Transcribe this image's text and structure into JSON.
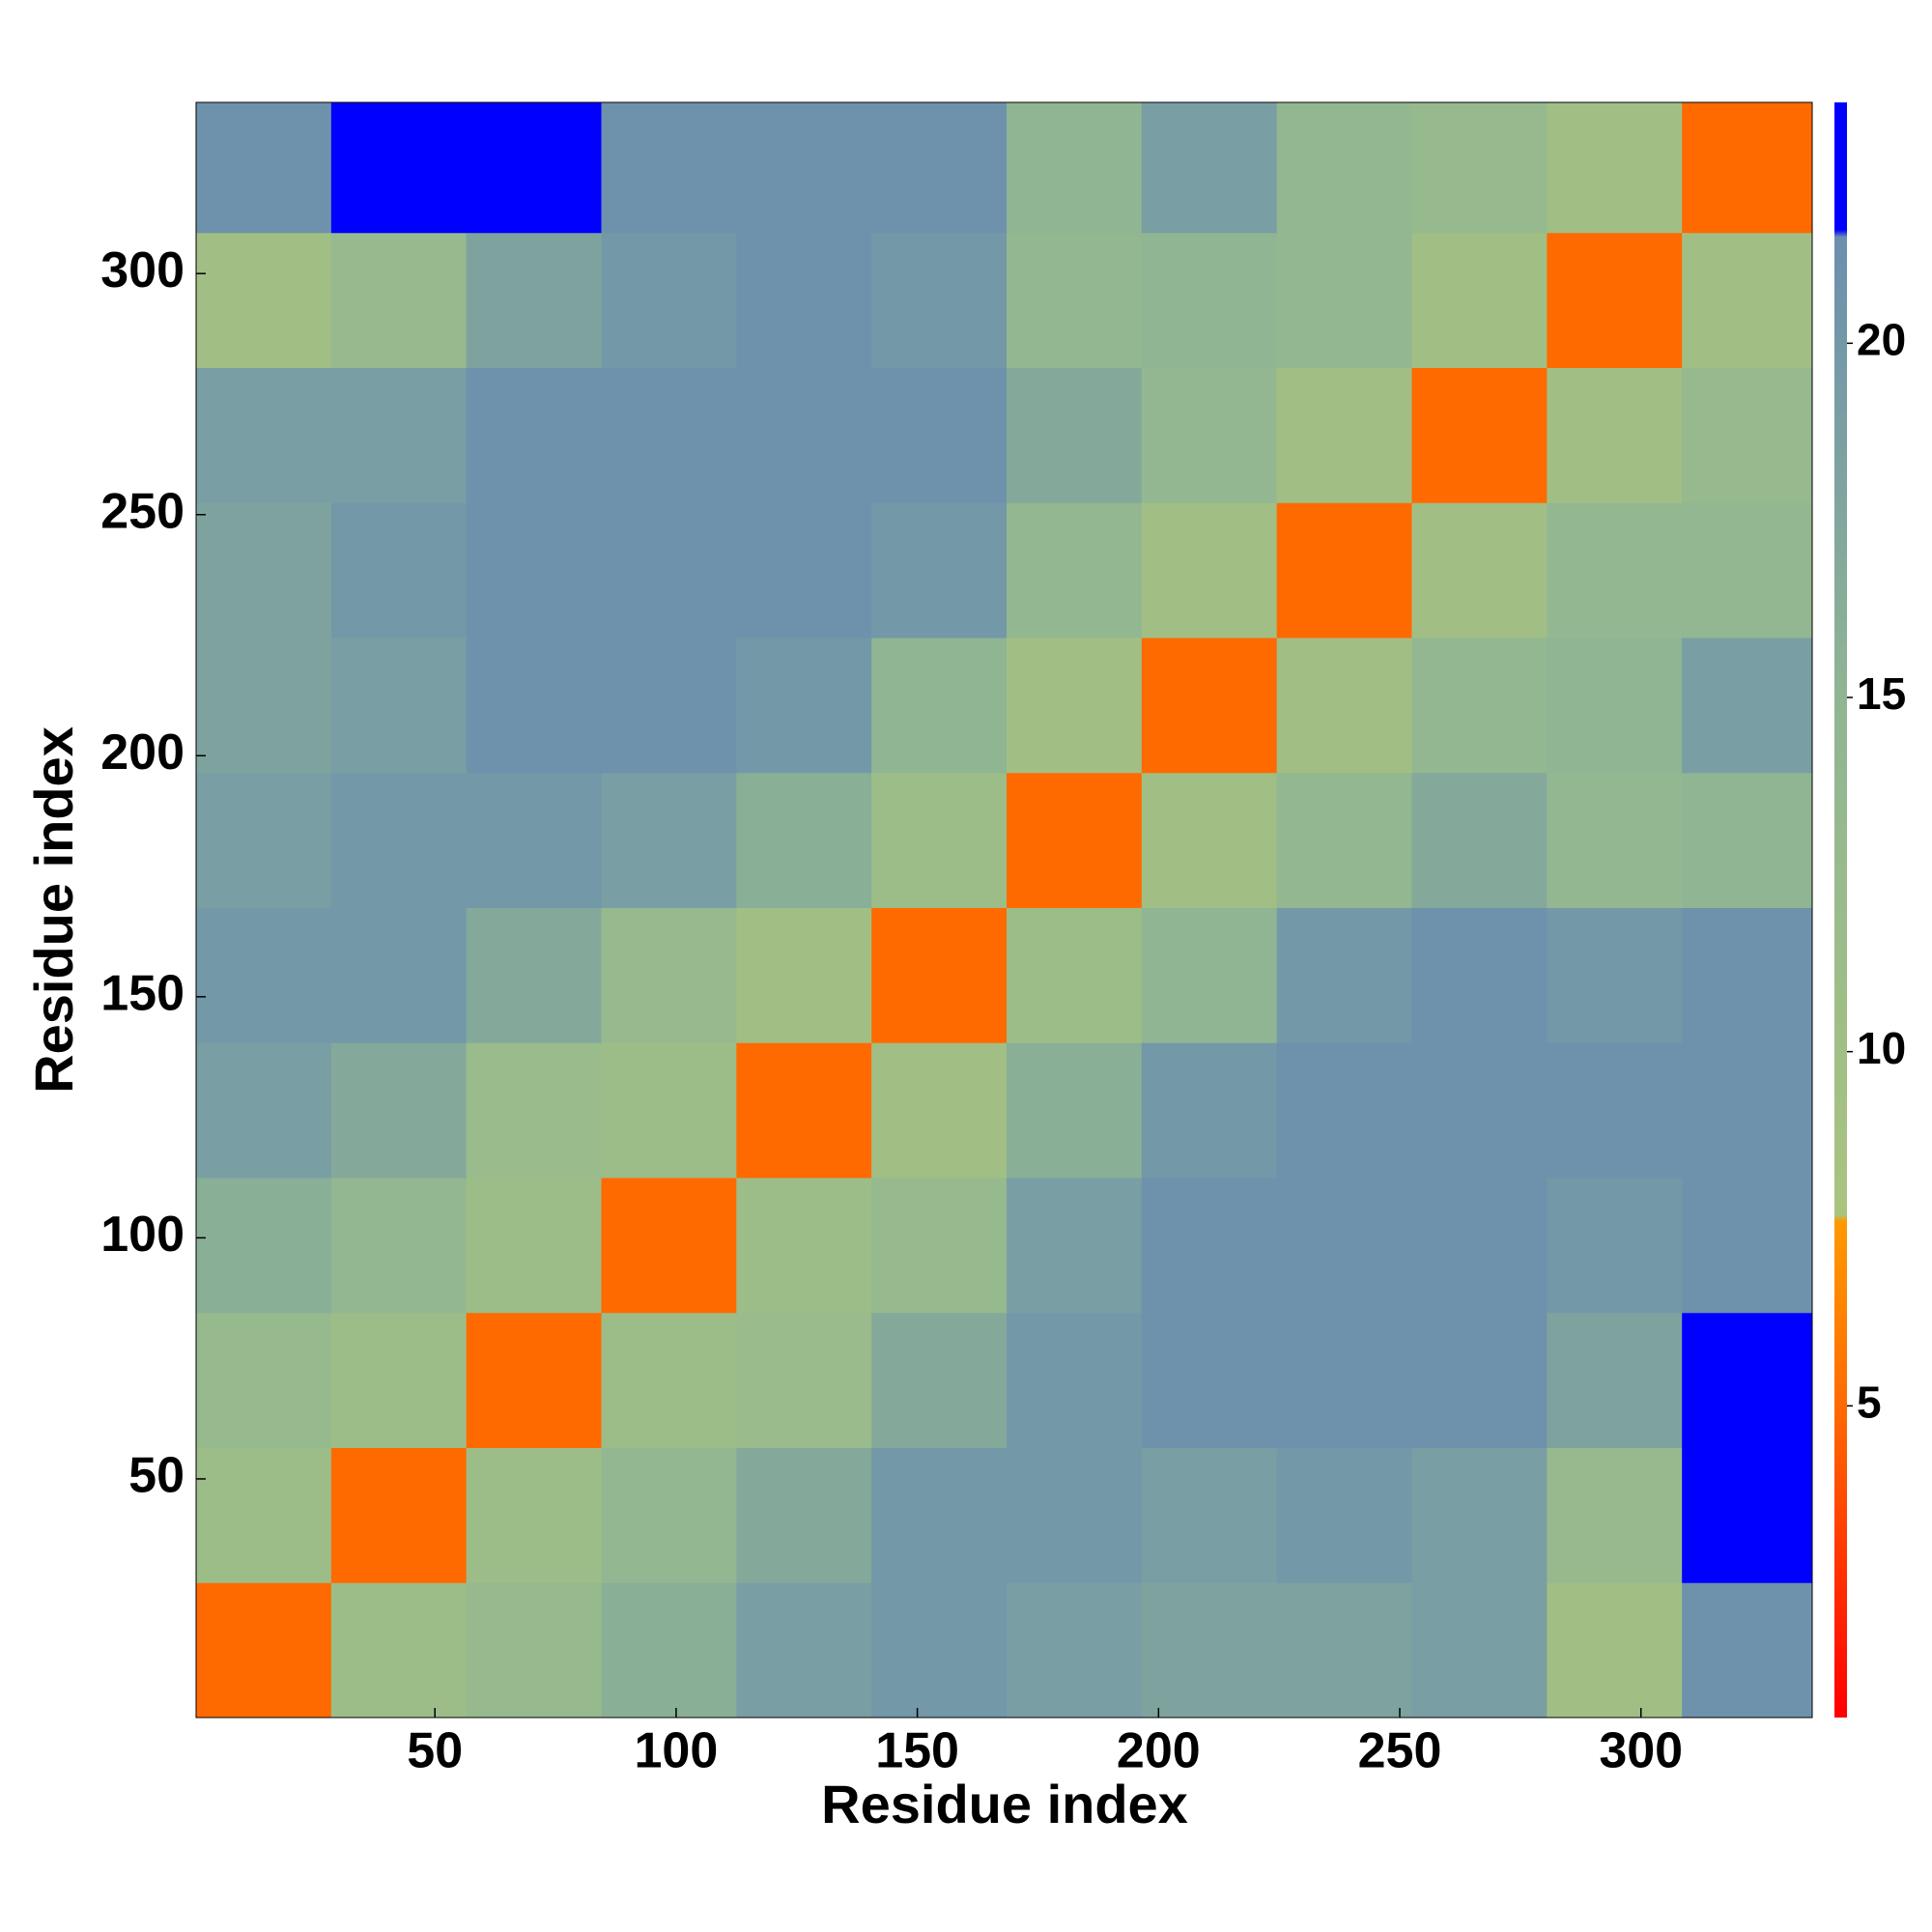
{
  "chart_data": {
    "type": "heatmap",
    "xlabel": "Residue index",
    "ylabel": "Residue index",
    "x_edges": [
      0.5,
      28.5,
      56.5,
      84.5,
      112.5,
      140.5,
      168.5,
      196.5,
      224.5,
      252.5,
      280.5,
      308.5,
      335.5
    ],
    "y_edges": [
      0.5,
      28.5,
      56.5,
      84.5,
      112.5,
      140.5,
      168.5,
      196.5,
      224.5,
      252.5,
      280.5,
      308.5,
      335.5
    ],
    "values": [
      [
        5,
        11,
        13,
        16,
        19,
        20,
        19,
        18,
        18,
        19,
        10,
        21
      ],
      [
        11,
        5,
        11,
        14,
        17,
        20,
        20,
        19,
        20,
        19,
        13,
        22
      ],
      [
        13,
        11,
        5,
        11,
        12,
        17,
        20,
        21,
        21,
        21,
        18,
        22
      ],
      [
        16,
        14,
        11,
        5,
        11,
        13,
        19,
        21,
        21,
        21,
        20,
        21
      ],
      [
        19,
        17,
        12,
        11,
        5,
        10,
        16,
        20,
        21,
        21,
        21,
        21
      ],
      [
        20,
        20,
        17,
        13,
        10,
        5,
        11,
        15,
        20,
        21,
        20,
        21
      ],
      [
        19,
        20,
        20,
        19,
        16,
        11,
        5,
        10,
        14,
        17,
        14,
        15
      ],
      [
        18,
        19,
        21,
        21,
        20,
        15,
        10,
        5,
        10,
        14,
        15,
        19
      ],
      [
        18,
        20,
        21,
        21,
        21,
        20,
        14,
        10,
        5,
        10,
        14,
        14
      ],
      [
        19,
        19,
        21,
        21,
        21,
        21,
        17,
        14,
        10,
        5,
        10,
        13
      ],
      [
        10,
        13,
        18,
        20,
        21,
        20,
        14,
        15,
        14,
        10,
        5,
        10
      ],
      [
        21,
        22,
        22,
        21,
        21,
        21,
        15,
        19,
        14,
        13,
        10,
        5
      ]
    ],
    "xlim": [
      0.5,
      335.5
    ],
    "ylim": [
      0.5,
      335.5
    ],
    "xticks": [
      50,
      100,
      150,
      200,
      250,
      300
    ],
    "yticks": [
      50,
      100,
      150,
      200,
      250,
      300
    ],
    "colorbar": {
      "lim": [
        0.6,
        23.4
      ],
      "ticks": [
        5,
        10,
        15,
        20
      ],
      "stops": [
        {
          "value": 0.6,
          "color": "#ff0000"
        },
        {
          "value": 3,
          "color": "#ff3a00"
        },
        {
          "value": 5,
          "color": "#ff6a00"
        },
        {
          "value": 7.6,
          "color": "#ff9900"
        },
        {
          "value": 7.7,
          "color": "#a9c47f"
        },
        {
          "value": 15,
          "color": "#8fb593"
        },
        {
          "value": 21.5,
          "color": "#6b8fae"
        },
        {
          "value": 21.6,
          "color": "#0000ff"
        },
        {
          "value": 23.4,
          "color": "#0000ff"
        }
      ]
    }
  }
}
